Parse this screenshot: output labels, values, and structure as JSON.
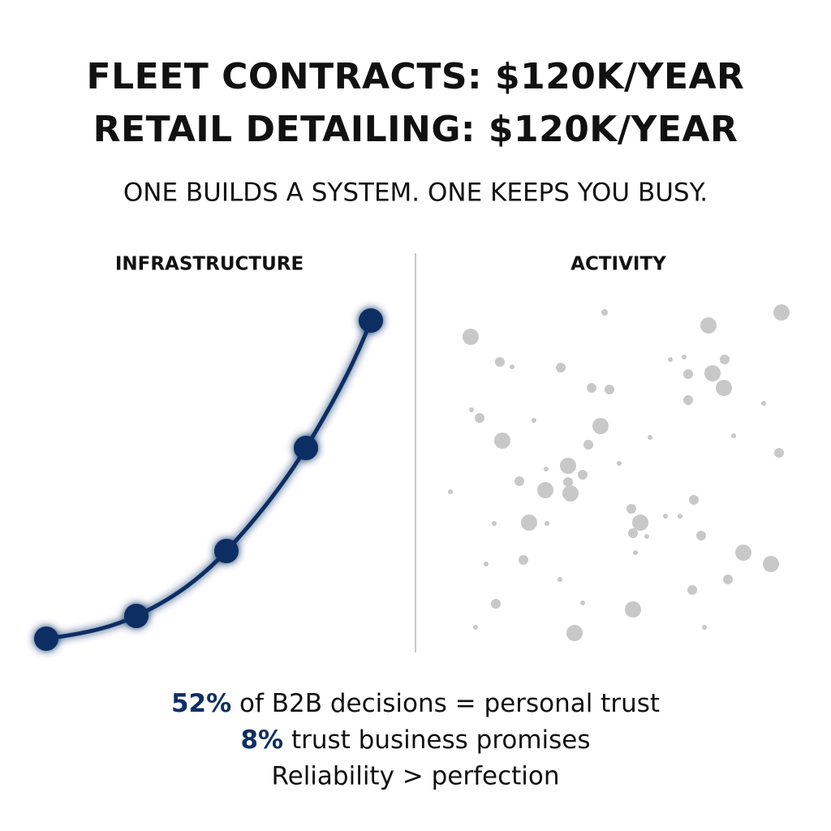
{
  "header": {
    "title_lines": [
      "FLEET CONTRACTS: $120K/YEAR",
      "RETAIL DETAILING: $120K/YEAR"
    ],
    "subtitle": "ONE BUILDS A SYSTEM. ONE KEEPS YOU BUSY."
  },
  "panels": [
    {
      "label": "INFRASTRUCTURE"
    },
    {
      "label": "ACTIVITY"
    }
  ],
  "stats": [
    {
      "highlight": "52%",
      "text": " of B2B decisions = personal trust"
    },
    {
      "highlight": "8%",
      "text": " trust business promises"
    },
    {
      "text": "Reliability > perfection"
    }
  ]
}
